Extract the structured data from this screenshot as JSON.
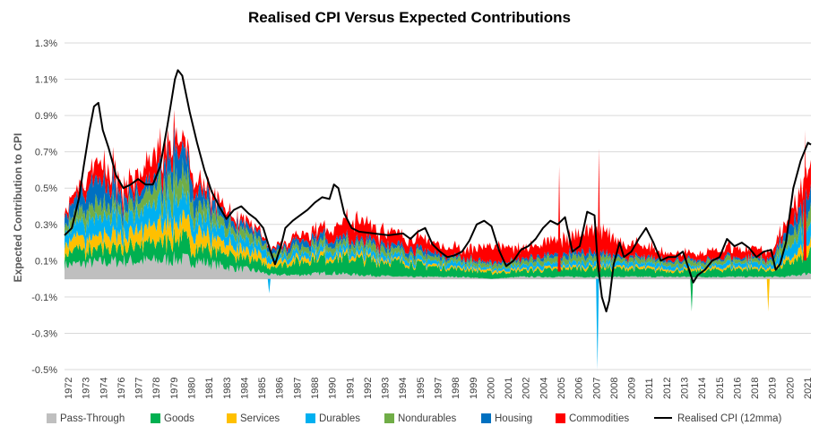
{
  "chart_data": {
    "type": "area",
    "title": "Realised CPI Versus Expected Contributions",
    "xlabel": "",
    "ylabel": "Expected Contribution to CPI",
    "y_ticks": [
      "1.3%",
      "1.1%",
      "0.9%",
      "0.7%",
      "0.5%",
      "0.3%",
      "0.1%",
      "-0.1%",
      "-0.3%",
      "-0.5%"
    ],
    "ylim": [
      -0.5,
      1.3
    ],
    "x_range": [
      1972,
      2022.7
    ],
    "x_tick_labels": [
      "1972",
      "1973",
      "1974",
      "1976",
      "1977",
      "1978",
      "1979",
      "1980",
      "1981",
      "1983",
      "1984",
      "1985",
      "1986",
      "1987",
      "1988",
      "1990",
      "1991",
      "1992",
      "1993",
      "1994",
      "1995",
      "1997",
      "1998",
      "1999",
      "2000",
      "2001",
      "2002",
      "2004",
      "2005",
      "2006",
      "2007",
      "2008",
      "2009",
      "2011",
      "2012",
      "2013",
      "2014",
      "2015",
      "2016",
      "2018",
      "2019",
      "2020",
      "2021"
    ],
    "stack_order": [
      "Pass-Through",
      "Goods",
      "Services",
      "Durables",
      "Nondurables",
      "Housing",
      "Commodities"
    ],
    "colors": {
      "Pass-Through": "#bfbfbf",
      "Goods": "#00b050",
      "Services": "#ffc000",
      "Durables": "#00b0f0",
      "Nondurables": "#70ad47",
      "Housing": "#0070c0",
      "Commodities": "#ff0000",
      "Realised CPI (12mma)": "#000000"
    },
    "series": [
      {
        "name": "Pass-Through",
        "kind": "stacked-area",
        "x": [
          1972,
          1974,
          1976,
          1978,
          1979.5,
          1981,
          1983,
          1985,
          1986,
          1988,
          1990,
          1992,
          1995,
          1997,
          1999,
          2001,
          2003,
          2006,
          2008,
          2010,
          2013,
          2015,
          2017,
          2019,
          2020,
          2021,
          2022.7
        ],
        "values": [
          0.07,
          0.08,
          0.09,
          0.09,
          0.1,
          0.09,
          0.06,
          0.04,
          0.02,
          0.02,
          0.03,
          0.02,
          0.01,
          0.01,
          0.01,
          0.0,
          0.01,
          0.01,
          0.01,
          0.01,
          0.01,
          0.01,
          0.01,
          0.01,
          0.01,
          0.01,
          0.03
        ]
      },
      {
        "name": "Goods",
        "kind": "stacked-area",
        "x": [
          1972,
          1974,
          1976,
          1978,
          1979.5,
          1981,
          1983,
          1985,
          1986,
          1988,
          1990,
          1992,
          1995,
          1997,
          1999,
          2001,
          2003,
          2006,
          2008,
          2010,
          2013,
          2015,
          2017,
          2019,
          2020,
          2021,
          2022.7
        ],
        "values": [
          0.06,
          0.07,
          0.07,
          0.09,
          0.11,
          0.08,
          0.06,
          0.05,
          0.04,
          0.07,
          0.08,
          0.08,
          0.07,
          0.05,
          0.04,
          0.03,
          0.03,
          0.04,
          0.05,
          0.04,
          0.03,
          0.03,
          0.04,
          0.04,
          0.03,
          0.06,
          0.1
        ]
      },
      {
        "name": "Services",
        "kind": "stacked-area",
        "x": [
          1972,
          1974,
          1976,
          1978,
          1979.5,
          1981,
          1983,
          1985,
          1986,
          1988,
          1990,
          1992,
          1995,
          1997,
          1999,
          2001,
          2003,
          2006,
          2008,
          2010,
          2013,
          2015,
          2017,
          2019,
          2020,
          2021,
          2022.7
        ],
        "values": [
          0.05,
          0.07,
          0.06,
          0.08,
          0.1,
          0.08,
          0.05,
          0.04,
          0.02,
          0.02,
          0.02,
          0.02,
          0.01,
          0.01,
          0.01,
          0.01,
          0.01,
          0.01,
          0.01,
          0.01,
          0.01,
          0.01,
          0.01,
          0.01,
          0.01,
          0.02,
          0.05
        ]
      },
      {
        "name": "Durables",
        "kind": "stacked-area",
        "x": [
          1972,
          1974,
          1976,
          1978,
          1979.5,
          1981,
          1983,
          1985,
          1986,
          1988,
          1990,
          1992,
          1995,
          1997,
          1999,
          2001,
          2003,
          2006,
          2008,
          2010,
          2013,
          2015,
          2017,
          2019,
          2020,
          2021,
          2022.7
        ],
        "values": [
          0.06,
          0.09,
          0.08,
          0.09,
          0.12,
          0.08,
          0.06,
          0.04,
          0.03,
          0.03,
          0.03,
          0.03,
          0.02,
          0.02,
          0.02,
          0.01,
          0.02,
          0.02,
          0.02,
          0.02,
          0.02,
          0.01,
          0.02,
          0.02,
          0.02,
          0.05,
          0.08
        ]
      },
      {
        "name": "Nondurables",
        "kind": "stacked-area",
        "x": [
          1972,
          1974,
          1976,
          1978,
          1979.5,
          1981,
          1983,
          1985,
          1986,
          1988,
          1990,
          1992,
          1995,
          1997,
          1999,
          2001,
          2003,
          2006,
          2008,
          2010,
          2013,
          2015,
          2017,
          2019,
          2020,
          2021,
          2022.7
        ],
        "values": [
          0.04,
          0.07,
          0.05,
          0.08,
          0.12,
          0.07,
          0.05,
          0.04,
          0.02,
          0.03,
          0.03,
          0.03,
          0.03,
          0.02,
          0.02,
          0.02,
          0.02,
          0.03,
          0.03,
          0.02,
          0.02,
          0.02,
          0.02,
          0.02,
          0.02,
          0.04,
          0.08
        ]
      },
      {
        "name": "Housing",
        "kind": "stacked-area",
        "x": [
          1972,
          1974,
          1976,
          1978,
          1979.5,
          1981,
          1983,
          1985,
          1986,
          1988,
          1990,
          1992,
          1995,
          1997,
          1999,
          2001,
          2003,
          2006,
          2008,
          2010,
          2013,
          2015,
          2017,
          2019,
          2020,
          2021,
          2022.7
        ],
        "values": [
          0.04,
          0.12,
          0.07,
          0.05,
          0.14,
          0.07,
          0.04,
          0.03,
          0.02,
          0.03,
          0.03,
          0.02,
          0.02,
          0.02,
          0.01,
          0.01,
          0.01,
          0.02,
          0.02,
          0.01,
          0.01,
          0.01,
          0.01,
          0.01,
          0.01,
          0.04,
          0.1
        ]
      },
      {
        "name": "Commodities",
        "kind": "stacked-area",
        "x": [
          1972,
          1974,
          1976,
          1978,
          1979.5,
          1981,
          1983,
          1985,
          1986,
          1988,
          1990,
          1992,
          1995,
          1997,
          1999,
          2001,
          2003,
          2006,
          2008,
          2010,
          2013,
          2015,
          2017,
          2019,
          2020,
          2021,
          2022.7
        ],
        "values": [
          0.02,
          0.08,
          0.06,
          0.12,
          0.07,
          0.05,
          0.03,
          0.02,
          0.01,
          0.03,
          0.05,
          0.1,
          0.06,
          0.05,
          0.04,
          0.08,
          0.05,
          0.08,
          0.12,
          0.07,
          0.04,
          0.03,
          0.05,
          0.04,
          0.03,
          0.05,
          0.12
        ]
      },
      {
        "name": "Realised CPI (12mma)",
        "kind": "line",
        "x": [
          1972,
          1972.5,
          1973,
          1973.3,
          1973.7,
          1974,
          1974.3,
          1974.6,
          1975,
          1975.5,
          1976,
          1976.5,
          1977,
          1977.5,
          1978,
          1978.5,
          1979,
          1979.5,
          1979.7,
          1980,
          1980.5,
          1981,
          1981.5,
          1982,
          1982.5,
          1983,
          1983.5,
          1984,
          1984.5,
          1985,
          1985.5,
          1986,
          1986.3,
          1986.7,
          1987,
          1987.5,
          1988,
          1988.5,
          1989,
          1989.5,
          1990,
          1990.3,
          1990.6,
          1991,
          1991.5,
          1992,
          1993,
          1994,
          1995,
          1995.5,
          1996,
          1996.5,
          1997,
          1997.5,
          1998,
          1998.5,
          1999,
          1999.5,
          2000,
          2000.5,
          2001,
          2001.5,
          2002,
          2002.5,
          2003,
          2003.5,
          2004,
          2004.5,
          2005,
          2005.5,
          2006,
          2006.5,
          2007,
          2007.5,
          2008,
          2008.2,
          2008.5,
          2008.8,
          2009,
          2009.3,
          2009.7,
          2010,
          2010.5,
          2011,
          2011.5,
          2012,
          2012.5,
          2013,
          2013.5,
          2014,
          2014.3,
          2014.7,
          2015,
          2015.5,
          2016,
          2016.5,
          2017,
          2017.5,
          2018,
          2018.5,
          2019,
          2019.5,
          2020,
          2020.3,
          2020.6,
          2021,
          2021.5,
          2022,
          2022.5,
          2022.7
        ],
        "values": [
          0.24,
          0.28,
          0.45,
          0.62,
          0.82,
          0.95,
          0.97,
          0.82,
          0.72,
          0.57,
          0.5,
          0.52,
          0.55,
          0.52,
          0.52,
          0.62,
          0.85,
          1.1,
          1.15,
          1.12,
          0.92,
          0.75,
          0.6,
          0.48,
          0.4,
          0.33,
          0.38,
          0.4,
          0.36,
          0.33,
          0.28,
          0.15,
          0.08,
          0.18,
          0.28,
          0.32,
          0.35,
          0.38,
          0.42,
          0.45,
          0.44,
          0.52,
          0.5,
          0.36,
          0.28,
          0.26,
          0.25,
          0.24,
          0.25,
          0.22,
          0.26,
          0.28,
          0.19,
          0.15,
          0.12,
          0.13,
          0.15,
          0.21,
          0.3,
          0.32,
          0.29,
          0.16,
          0.07,
          0.1,
          0.16,
          0.18,
          0.22,
          0.28,
          0.32,
          0.3,
          0.34,
          0.15,
          0.18,
          0.37,
          0.35,
          0.1,
          -0.1,
          -0.18,
          -0.12,
          0.08,
          0.2,
          0.12,
          0.15,
          0.22,
          0.28,
          0.2,
          0.1,
          0.12,
          0.12,
          0.15,
          0.08,
          -0.02,
          0.02,
          0.05,
          0.1,
          0.12,
          0.22,
          0.18,
          0.2,
          0.17,
          0.12,
          0.15,
          0.16,
          0.05,
          0.08,
          0.2,
          0.5,
          0.65,
          0.75,
          0.74
        ]
      }
    ],
    "spikes": [
      {
        "series": "Durables",
        "x": 1985.9,
        "value": -0.08
      },
      {
        "series": "Durables",
        "x": 2008.2,
        "value": -0.5
      },
      {
        "series": "Goods",
        "x": 2014.6,
        "value": -0.18
      },
      {
        "series": "Services",
        "x": 2019.8,
        "value": -0.18
      },
      {
        "series": "Commodities",
        "x": 2005.6,
        "value": 0.62
      },
      {
        "series": "Commodities",
        "x": 2008.3,
        "value": 0.72
      },
      {
        "series": "Commodities",
        "x": 2022.3,
        "value": 0.82
      }
    ],
    "legend_position": "bottom",
    "legend": [
      {
        "name": "Pass-Through",
        "marker": "box"
      },
      {
        "name": "Goods",
        "marker": "box"
      },
      {
        "name": "Services",
        "marker": "box"
      },
      {
        "name": "Durables",
        "marker": "box"
      },
      {
        "name": "Nondurables",
        "marker": "box"
      },
      {
        "name": "Housing",
        "marker": "box"
      },
      {
        "name": "Commodities",
        "marker": "box"
      },
      {
        "name": "Realised CPI (12mma)",
        "marker": "line"
      }
    ]
  }
}
